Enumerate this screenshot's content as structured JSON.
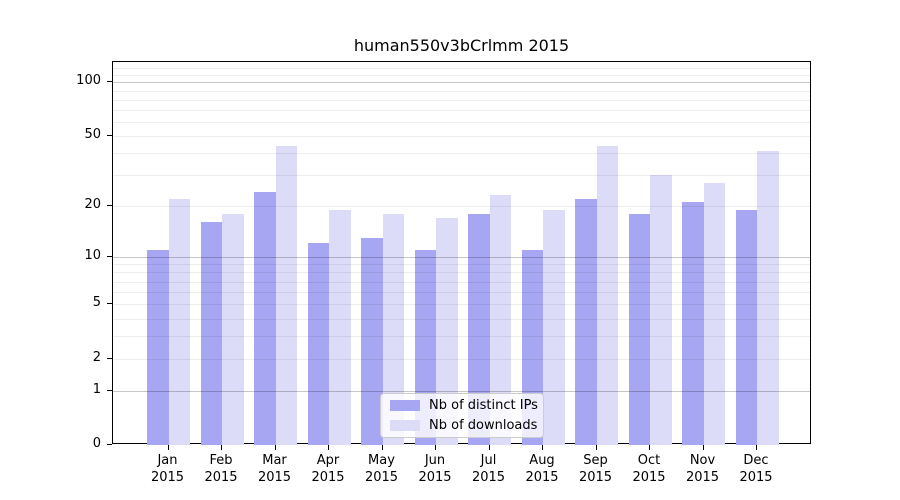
{
  "chart_data": {
    "type": "bar",
    "title": "human550v3bCrlmm 2015",
    "categories": [
      "Jan",
      "Feb",
      "Mar",
      "Apr",
      "May",
      "Jun",
      "Jul",
      "Aug",
      "Sep",
      "Oct",
      "Nov",
      "Dec"
    ],
    "year": "2015",
    "series": [
      {
        "name": "Nb of distinct IPs",
        "color": "#a6a6f2",
        "values": [
          11,
          16,
          24,
          12,
          13,
          11,
          18,
          11,
          22,
          18,
          21,
          19
        ]
      },
      {
        "name": "Nb of downloads",
        "color": "#dcdcf9",
        "values": [
          22,
          18,
          44,
          19,
          18,
          17,
          23,
          19,
          44,
          30,
          27,
          41
        ]
      }
    ],
    "scale": "log1p",
    "ylim": [
      0,
      130
    ],
    "yticks": [
      0,
      1,
      2,
      5,
      10,
      20,
      50,
      100
    ],
    "major_gridlines": [
      1,
      10,
      100
    ],
    "minor_gridlines": [
      2,
      3,
      4,
      5,
      6,
      7,
      8,
      9,
      20,
      30,
      40,
      50,
      60,
      70,
      80,
      90,
      110,
      120
    ],
    "grid": true,
    "xlabel": "",
    "ylabel": "",
    "legend_position": "lower center"
  },
  "colors": {
    "background": "#ffffff",
    "axis": "#000000",
    "text": "#000000",
    "legend_border": "#cccccc",
    "series_distinct_ips": "#a6a6f2",
    "series_downloads": "#dcdcf9"
  }
}
